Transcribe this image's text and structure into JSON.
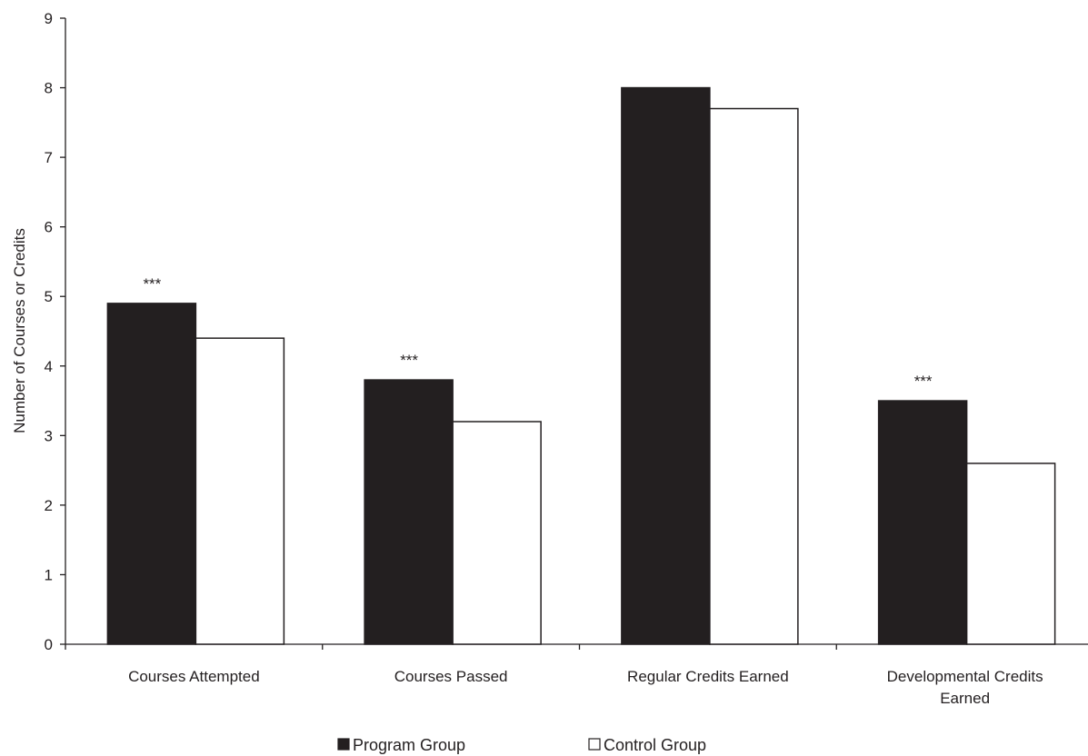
{
  "chart_data": {
    "type": "bar",
    "title": "",
    "xlabel": "",
    "ylabel": "Number of Courses or Credits",
    "ylim": [
      0,
      9
    ],
    "yticks": [
      "0",
      "1",
      "2",
      "3",
      "4",
      "5",
      "6",
      "7",
      "8",
      "9"
    ],
    "grid": false,
    "legend_position": "bottom",
    "categories": [
      [
        "Courses Attempted"
      ],
      [
        "Courses Passed"
      ],
      [
        "Regular Credits Earned"
      ],
      [
        "Developmental Credits",
        "Earned"
      ]
    ],
    "series": [
      {
        "name": "Program Group",
        "color": "#231f20",
        "values": [
          4.9,
          3.8,
          8.0,
          3.5
        ]
      },
      {
        "name": "Control Group",
        "color": "#ffffff",
        "values": [
          4.4,
          3.2,
          7.7,
          2.6
        ]
      }
    ],
    "annotations": [
      "***",
      "***",
      "",
      "***"
    ]
  }
}
